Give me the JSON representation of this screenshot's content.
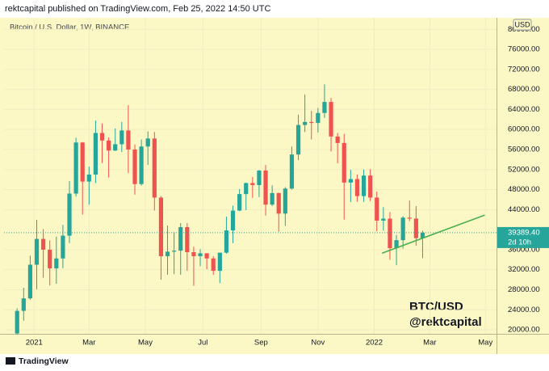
{
  "chart_data": {
    "type": "candlestick",
    "header": "rektcapital published on TradingView.com, Feb 25, 2022 14:50 UTC",
    "title": "Bitcoin / U.S. Dollar, 1W, BINANCE",
    "watermark": [
      "BTC/USD",
      "@rektcapital"
    ],
    "currency": "USD",
    "footer": "TradingView",
    "up_color": "#26a69a",
    "down_color": "#ef5350",
    "open": [
      19270,
      23780,
      26280,
      33000,
      38150,
      36000,
      32260,
      34250,
      38800,
      47200,
      57400,
      49600,
      51000,
      59300,
      57800,
      55800,
      57050,
      59800,
      56000,
      49100,
      56600,
      58200,
      46400,
      34700,
      35600,
      35800,
      40500,
      35500,
      34700,
      35280,
      34250,
      31780,
      35400,
      39850,
      43800,
      47100,
      49300,
      48900,
      51800,
      45000,
      47300,
      43200,
      48200,
      55000,
      60900,
      61500,
      61300,
      63300,
      65500,
      58600,
      57300,
      49400,
      50100,
      46700,
      50800,
      46400,
      41800,
      42200,
      36300,
      37900,
      42400,
      42200,
      38300
    ],
    "high": [
      24300,
      28400,
      34800,
      41950,
      40100,
      37850,
      38600,
      40950,
      49700,
      58350,
      57500,
      52600,
      61800,
      61200,
      58400,
      60200,
      61500,
      64850,
      57000,
      58000,
      59600,
      59500,
      46700,
      40800,
      39500,
      41300,
      41300,
      36600,
      36100,
      35300,
      34700,
      35400,
      42600,
      44800,
      48100,
      49400,
      50500,
      51900,
      52900,
      48850,
      47400,
      48500,
      56600,
      62950,
      67000,
      63700,
      64300,
      69000,
      66300,
      59300,
      59100,
      51950,
      51000,
      52000,
      52100,
      47600,
      44500,
      43500,
      38950,
      42700,
      45800,
      44700,
      39800
    ],
    "low": [
      19000,
      21800,
      26000,
      28100,
      30400,
      28850,
      29200,
      32300,
      37300,
      46600,
      43000,
      45000,
      49300,
      53300,
      50400,
      55700,
      55500,
      51300,
      47000,
      48800,
      52900,
      43800,
      30000,
      31000,
      31100,
      31000,
      31800,
      28800,
      32700,
      32100,
      31000,
      29300,
      35200,
      37300,
      43700,
      43900,
      46350,
      46500,
      42800,
      44700,
      39600,
      40750,
      48000,
      53900,
      59500,
      58000,
      59400,
      62300,
      55600,
      53250,
      42000,
      45500,
      45600,
      45550,
      45700,
      39650,
      39800,
      34000,
      32900,
      36200,
      41700,
      36800,
      34300
    ],
    "close": [
      23780,
      26280,
      33000,
      38150,
      36000,
      32260,
      34250,
      38800,
      47200,
      57400,
      49600,
      51000,
      59300,
      57800,
      55800,
      57050,
      59800,
      56000,
      49100,
      56600,
      58200,
      46400,
      34700,
      35600,
      35800,
      40500,
      35500,
      34700,
      35280,
      34250,
      31780,
      35400,
      39850,
      43800,
      47100,
      49300,
      48900,
      51800,
      45000,
      47300,
      43200,
      48200,
      55000,
      60900,
      61500,
      61300,
      63300,
      65500,
      58600,
      57300,
      49400,
      50100,
      46700,
      50800,
      46400,
      41800,
      42200,
      36300,
      37900,
      42400,
      42200,
      38300,
      39389.4
    ],
    "last_price_label": "39389.40",
    "countdown": "2d 10h",
    "xlim": [
      -2,
      73.3
    ],
    "xticks": [
      {
        "value": 2.6,
        "label": "2021"
      },
      {
        "value": 11,
        "label": "Mar"
      },
      {
        "value": 19.6,
        "label": "May"
      },
      {
        "value": 28.4,
        "label": "Jul"
      },
      {
        "value": 37.3,
        "label": "Sep"
      },
      {
        "value": 46,
        "label": "Nov"
      },
      {
        "value": 54.6,
        "label": "2022"
      },
      {
        "value": 63.1,
        "label": "Mar"
      },
      {
        "value": 71.6,
        "label": "May"
      }
    ],
    "ylim": [
      19200,
      82300
    ],
    "yticks": [
      {
        "value": 80000,
        "label": "80000.00"
      },
      {
        "value": 76000,
        "label": "76000.00"
      },
      {
        "value": 72000,
        "label": "72000.00"
      },
      {
        "value": 68000,
        "label": "68000.00"
      },
      {
        "value": 64000,
        "label": "64000.00"
      },
      {
        "value": 60000,
        "label": "60000.00"
      },
      {
        "value": 56000,
        "label": "56000.00"
      },
      {
        "value": 52000,
        "label": "52000.00"
      },
      {
        "value": 48000,
        "label": "48000.00"
      },
      {
        "value": 44000,
        "label": "44000.00"
      },
      {
        "value": 36000,
        "label": "36000.00"
      },
      {
        "value": 32000,
        "label": "32000.00"
      },
      {
        "value": 28000,
        "label": "28000.00"
      },
      {
        "value": 24000,
        "label": "24000.00"
      },
      {
        "value": 20000,
        "label": "20000.00"
      }
    ],
    "trendline": {
      "x": [
        55.8,
        71.5
      ],
      "y": [
        35300,
        42900
      ],
      "color": "#4caf50"
    }
  }
}
